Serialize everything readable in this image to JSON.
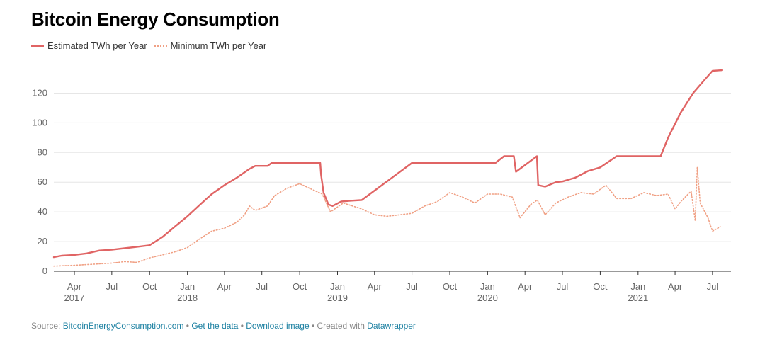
{
  "title": "Bitcoin Energy Consumption",
  "footer": {
    "source_prefix": "Source: ",
    "source_link": "BitcoinEnergyConsumption.com",
    "sep1": " • ",
    "get_data": "Get the data",
    "sep2": " • ",
    "download": "Download image",
    "created_with": " • Created with ",
    "datawrapper": "Datawrapper"
  },
  "chart_data": {
    "type": "line",
    "title": "Bitcoin Energy Consumption",
    "xlabel": "",
    "ylabel": "",
    "ylim": [
      0,
      135
    ],
    "xlim": [
      "2017-02-10",
      "2021-08-15"
    ],
    "yticks": [
      0,
      20,
      40,
      60,
      80,
      100,
      120
    ],
    "xticks": [
      {
        "date": "2017-04-01",
        "label": "Apr",
        "year": "2017"
      },
      {
        "date": "2017-07-01",
        "label": "Jul",
        "year": ""
      },
      {
        "date": "2017-10-01",
        "label": "Oct",
        "year": ""
      },
      {
        "date": "2018-01-01",
        "label": "Jan",
        "year": "2018"
      },
      {
        "date": "2018-04-01",
        "label": "Apr",
        "year": ""
      },
      {
        "date": "2018-07-01",
        "label": "Jul",
        "year": ""
      },
      {
        "date": "2018-10-01",
        "label": "Oct",
        "year": ""
      },
      {
        "date": "2019-01-01",
        "label": "Jan",
        "year": "2019"
      },
      {
        "date": "2019-04-01",
        "label": "Apr",
        "year": ""
      },
      {
        "date": "2019-07-01",
        "label": "Jul",
        "year": ""
      },
      {
        "date": "2019-10-01",
        "label": "Oct",
        "year": ""
      },
      {
        "date": "2020-01-01",
        "label": "Jan",
        "year": "2020"
      },
      {
        "date": "2020-04-01",
        "label": "Apr",
        "year": ""
      },
      {
        "date": "2020-07-01",
        "label": "Jul",
        "year": ""
      },
      {
        "date": "2020-10-01",
        "label": "Oct",
        "year": ""
      },
      {
        "date": "2021-01-01",
        "label": "Jan",
        "year": "2021"
      },
      {
        "date": "2021-04-01",
        "label": "Apr",
        "year": ""
      },
      {
        "date": "2021-07-01",
        "label": "Jul",
        "year": ""
      }
    ],
    "grid": true,
    "legend": "top-left",
    "series": [
      {
        "name": "Estimated TWh per Year",
        "color": "#e06464",
        "style": "solid",
        "points": [
          [
            "2017-02-10",
            9.5
          ],
          [
            "2017-03-01",
            10.5
          ],
          [
            "2017-04-01",
            11.0
          ],
          [
            "2017-05-01",
            12.0
          ],
          [
            "2017-06-01",
            14.0
          ],
          [
            "2017-07-01",
            14.5
          ],
          [
            "2017-08-01",
            15.5
          ],
          [
            "2017-09-01",
            16.5
          ],
          [
            "2017-10-01",
            17.5
          ],
          [
            "2017-11-01",
            23.0
          ],
          [
            "2017-12-01",
            30.0
          ],
          [
            "2018-01-01",
            37.0
          ],
          [
            "2018-02-01",
            45.0
          ],
          [
            "2018-03-01",
            52.0
          ],
          [
            "2018-04-01",
            58.0
          ],
          [
            "2018-05-01",
            63.0
          ],
          [
            "2018-06-01",
            69.0
          ],
          [
            "2018-06-15",
            71.0
          ],
          [
            "2018-07-15",
            71.0
          ],
          [
            "2018-07-25",
            73.0
          ],
          [
            "2018-11-20",
            73.0
          ],
          [
            "2018-11-22",
            65.0
          ],
          [
            "2018-11-28",
            53.0
          ],
          [
            "2018-12-10",
            45.0
          ],
          [
            "2018-12-20",
            44.0
          ],
          [
            "2019-01-10",
            47.0
          ],
          [
            "2019-02-01",
            47.5
          ],
          [
            "2019-03-01",
            48.0
          ],
          [
            "2019-07-01",
            73.0
          ],
          [
            "2019-12-15",
            73.0
          ],
          [
            "2020-01-20",
            73.0
          ],
          [
            "2020-02-10",
            77.5
          ],
          [
            "2020-03-05",
            77.5
          ],
          [
            "2020-03-10",
            67.0
          ],
          [
            "2020-04-30",
            77.5
          ],
          [
            "2020-05-03",
            58.0
          ],
          [
            "2020-05-20",
            57.0
          ],
          [
            "2020-06-15",
            60.0
          ],
          [
            "2020-07-01",
            60.5
          ],
          [
            "2020-08-01",
            63.0
          ],
          [
            "2020-09-01",
            67.5
          ],
          [
            "2020-10-01",
            70.0
          ],
          [
            "2020-11-10",
            77.5
          ],
          [
            "2021-02-25",
            77.5
          ],
          [
            "2021-03-15",
            90.0
          ],
          [
            "2021-04-15",
            107.0
          ],
          [
            "2021-05-15",
            120.0
          ],
          [
            "2021-06-15",
            130.0
          ],
          [
            "2021-07-01",
            135.0
          ],
          [
            "2021-07-25",
            135.5
          ]
        ]
      },
      {
        "name": "Minimum TWh per Year",
        "color": "#f0a084",
        "style": "dotted",
        "points": [
          [
            "2017-02-10",
            3.5
          ],
          [
            "2017-04-01",
            4.0
          ],
          [
            "2017-06-01",
            5.0
          ],
          [
            "2017-07-01",
            5.5
          ],
          [
            "2017-08-01",
            6.5
          ],
          [
            "2017-09-01",
            6.0
          ],
          [
            "2017-10-01",
            9.0
          ],
          [
            "2017-11-01",
            11.0
          ],
          [
            "2017-12-01",
            13.0
          ],
          [
            "2018-01-01",
            16.0
          ],
          [
            "2018-02-01",
            22.0
          ],
          [
            "2018-03-01",
            27.0
          ],
          [
            "2018-04-01",
            29.0
          ],
          [
            "2018-05-01",
            33.0
          ],
          [
            "2018-05-20",
            38.0
          ],
          [
            "2018-06-01",
            44.0
          ],
          [
            "2018-06-15",
            41.0
          ],
          [
            "2018-07-15",
            44.0
          ],
          [
            "2018-08-01",
            51.0
          ],
          [
            "2018-09-01",
            56.0
          ],
          [
            "2018-10-01",
            59.0
          ],
          [
            "2018-11-01",
            55.0
          ],
          [
            "2018-11-25",
            52.0
          ],
          [
            "2018-12-15",
            40.0
          ],
          [
            "2019-01-15",
            46.0
          ],
          [
            "2019-03-01",
            42.0
          ],
          [
            "2019-04-01",
            38.0
          ],
          [
            "2019-05-01",
            37.0
          ],
          [
            "2019-06-01",
            38.0
          ],
          [
            "2019-07-01",
            39.0
          ],
          [
            "2019-08-01",
            44.0
          ],
          [
            "2019-09-01",
            47.0
          ],
          [
            "2019-10-01",
            53.0
          ],
          [
            "2019-11-01",
            50.0
          ],
          [
            "2019-12-01",
            46.0
          ],
          [
            "2020-01-01",
            52.0
          ],
          [
            "2020-02-01",
            52.0
          ],
          [
            "2020-03-01",
            50.0
          ],
          [
            "2020-03-20",
            36.0
          ],
          [
            "2020-04-15",
            45.0
          ],
          [
            "2020-05-01",
            48.0
          ],
          [
            "2020-05-20",
            38.0
          ],
          [
            "2020-06-15",
            46.0
          ],
          [
            "2020-07-15",
            50.0
          ],
          [
            "2020-08-15",
            53.0
          ],
          [
            "2020-09-15",
            52.0
          ],
          [
            "2020-10-15",
            58.0
          ],
          [
            "2020-11-10",
            49.0
          ],
          [
            "2020-12-15",
            49.0
          ],
          [
            "2021-01-15",
            53.0
          ],
          [
            "2021-02-15",
            51.0
          ],
          [
            "2021-03-15",
            52.0
          ],
          [
            "2021-04-01",
            42.0
          ],
          [
            "2021-04-15",
            47.0
          ],
          [
            "2021-05-10",
            54.0
          ],
          [
            "2021-05-20",
            34.0
          ],
          [
            "2021-05-25",
            70.0
          ],
          [
            "2021-06-01",
            46.0
          ],
          [
            "2021-06-20",
            36.0
          ],
          [
            "2021-07-01",
            27.0
          ],
          [
            "2021-07-20",
            30.0
          ]
        ]
      }
    ]
  }
}
